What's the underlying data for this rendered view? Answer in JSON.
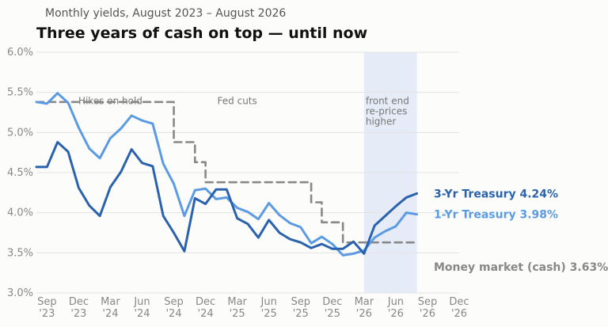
{
  "chart_data": {
    "type": "line",
    "subtitle": "Monthly yields, August 2023 – August 2026",
    "title": "Three years of cash on top — until now",
    "ylim": [
      3.0,
      6.0
    ],
    "y_ticks": [
      3.0,
      3.5,
      4.0,
      4.5,
      5.0,
      5.5,
      6.0
    ],
    "y_tick_labels": [
      "3.0%",
      "3.5%",
      "4.0%",
      "4.5%",
      "5.0%",
      "5.5%",
      "6.0%"
    ],
    "grid": true,
    "x_start": "2023-08",
    "x_end": "2026-12",
    "x": [
      "2023-08",
      "2023-09",
      "2023-10",
      "2023-11",
      "2023-12",
      "2024-01",
      "2024-02",
      "2024-03",
      "2024-04",
      "2024-05",
      "2024-06",
      "2024-07",
      "2024-08",
      "2024-09",
      "2024-10",
      "2024-11",
      "2024-12",
      "2025-01",
      "2025-02",
      "2025-03",
      "2025-04",
      "2025-05",
      "2025-06",
      "2025-07",
      "2025-08",
      "2025-09",
      "2025-10",
      "2025-11",
      "2025-12",
      "2026-01",
      "2026-02",
      "2026-03",
      "2026-04",
      "2026-05",
      "2026-06",
      "2026-07",
      "2026-08"
    ],
    "x_ticks": [
      {
        "date": "2023-09",
        "line1": "Sep",
        "line2": "'23"
      },
      {
        "date": "2023-12",
        "line1": "Dec",
        "line2": "'23"
      },
      {
        "date": "2024-03",
        "line1": "Mar",
        "line2": "'24"
      },
      {
        "date": "2024-06",
        "line1": "Jun",
        "line2": "'24"
      },
      {
        "date": "2024-09",
        "line1": "Sep",
        "line2": "'24"
      },
      {
        "date": "2024-12",
        "line1": "Dec",
        "line2": "'24"
      },
      {
        "date": "2025-03",
        "line1": "Mar",
        "line2": "'25"
      },
      {
        "date": "2025-06",
        "line1": "Jun",
        "line2": "'25"
      },
      {
        "date": "2025-09",
        "line1": "Sep",
        "line2": "'25"
      },
      {
        "date": "2025-12",
        "line1": "Dec",
        "line2": "'25"
      },
      {
        "date": "2026-03",
        "line1": "Mar",
        "line2": "'26"
      },
      {
        "date": "2026-06",
        "line1": "Jun",
        "line2": "'26"
      },
      {
        "date": "2026-09",
        "line1": "Sep",
        "line2": "'26"
      },
      {
        "date": "2026-12",
        "line1": "Dec",
        "line2": "'26"
      }
    ],
    "shaded_region": {
      "from": "2026-03",
      "to": "2026-08",
      "color": "#e6ecf7"
    },
    "annotations": [
      {
        "text_lines": [
          "Hikes on hold"
        ],
        "date": "2024-03",
        "y": 5.68
      },
      {
        "text_lines": [
          "Fed cuts"
        ],
        "date": "2025-03",
        "y": 5.68
      },
      {
        "text_lines": [
          "front end",
          "re-prices",
          "higher"
        ],
        "date": "2026-03",
        "y": 5.68
      }
    ],
    "series": [
      {
        "key": "money-market",
        "name": "Money market (cash)",
        "value_label": "3.63%",
        "color": "#888888",
        "dashed": true,
        "step": true,
        "values": [
          5.38,
          5.38,
          5.38,
          5.38,
          5.38,
          5.38,
          5.38,
          5.38,
          5.38,
          5.38,
          5.38,
          5.38,
          5.38,
          4.88,
          4.88,
          4.63,
          4.38,
          4.38,
          4.38,
          4.38,
          4.38,
          4.38,
          4.38,
          4.38,
          4.38,
          4.38,
          4.13,
          3.88,
          3.88,
          3.63,
          3.63,
          3.63,
          3.63,
          3.63,
          3.63,
          3.63,
          3.63
        ]
      },
      {
        "key": "1yr",
        "name": "1-Yr Treasury",
        "value_label": "3.98%",
        "color": "#5b9be3",
        "dashed": false,
        "step": false,
        "values": [
          5.38,
          5.36,
          5.49,
          5.37,
          5.06,
          4.8,
          4.68,
          4.93,
          5.05,
          5.21,
          5.15,
          5.11,
          4.61,
          4.36,
          3.96,
          4.28,
          4.3,
          4.17,
          4.19,
          4.06,
          4.01,
          3.92,
          4.12,
          3.97,
          3.87,
          3.82,
          3.62,
          3.7,
          3.61,
          3.47,
          3.49,
          3.53,
          3.69,
          3.77,
          3.83,
          4.0,
          3.98
        ]
      },
      {
        "key": "3yr",
        "name": "3-Yr Treasury",
        "value_label": "4.24%",
        "color": "#2a62ad",
        "dashed": false,
        "step": false,
        "values": [
          4.57,
          4.57,
          4.88,
          4.76,
          4.31,
          4.09,
          3.96,
          4.32,
          4.51,
          4.79,
          4.62,
          4.58,
          3.96,
          3.75,
          3.52,
          4.18,
          4.11,
          4.29,
          4.29,
          3.93,
          3.86,
          3.69,
          3.91,
          3.75,
          3.67,
          3.63,
          3.56,
          3.61,
          3.55,
          3.55,
          3.64,
          3.49,
          3.84,
          3.96,
          4.08,
          4.19,
          4.24
        ]
      }
    ]
  }
}
